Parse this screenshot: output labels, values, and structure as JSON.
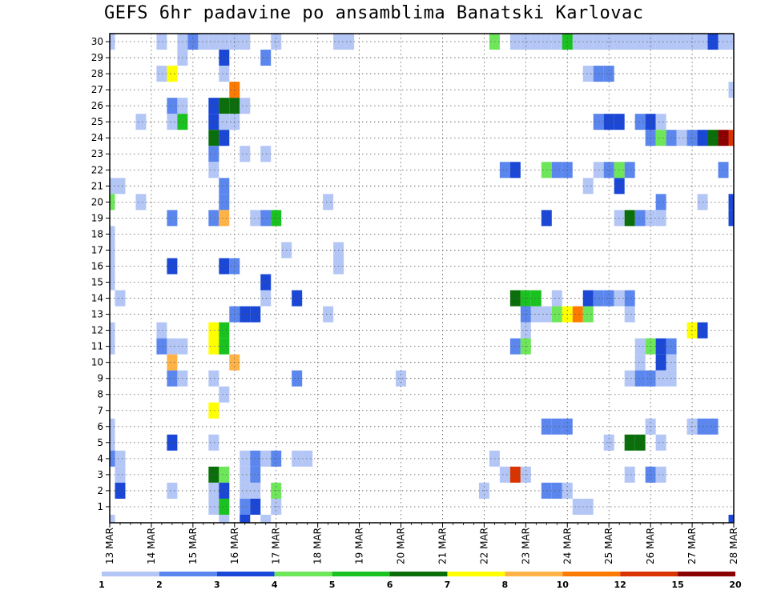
{
  "chart_data": {
    "type": "heatmap",
    "title": "GEFS 6hr padavine po ansamblima Banatski Karlovac",
    "x_axis": {
      "ticks": [
        "13 MAR",
        "14 MAR",
        "15 MAR",
        "16 MAR",
        "17 MAR",
        "18 MAR",
        "19 MAR",
        "20 MAR",
        "21 MAR",
        "22 MAR",
        "23 MAR",
        "24 MAR",
        "25 MAR",
        "26 MAR",
        "27 MAR",
        "28 MAR"
      ],
      "steps_per_day": 4,
      "range": [
        "13 MAR",
        "28 MAR"
      ]
    },
    "y_axis": {
      "ticks": [
        1,
        2,
        3,
        4,
        5,
        6,
        7,
        8,
        9,
        10,
        11,
        12,
        13,
        14,
        15,
        16,
        17,
        18,
        19,
        20,
        21,
        22,
        23,
        24,
        25,
        26,
        27,
        28,
        29,
        30
      ],
      "range": [
        0,
        30
      ]
    },
    "grid": true,
    "colorbar": {
      "levels": [
        "1",
        "2",
        "3",
        "4",
        "5",
        "6",
        "7",
        "8",
        "10",
        "12",
        "15",
        "20"
      ],
      "colors": [
        "#b3c6f5",
        "#5b86ee",
        "#1b47d6",
        "#6ee65a",
        "#19c21f",
        "#0a6e0a",
        "#ffff00",
        "#ffb347",
        "#ff7b00",
        "#d93400",
        "#8b0000"
      ]
    },
    "cells": [
      {
        "m": 30,
        "t": 0,
        "c": 0
      },
      {
        "m": 30,
        "t": 5,
        "c": 0
      },
      {
        "m": 30,
        "t": 7,
        "c": 0
      },
      {
        "m": 30,
        "t": 8,
        "c": 1
      },
      {
        "m": 30,
        "t": 9,
        "c": 0
      },
      {
        "m": 30,
        "t": 10,
        "c": 0
      },
      {
        "m": 30,
        "t": 11,
        "c": 0
      },
      {
        "m": 30,
        "t": 12,
        "c": 0
      },
      {
        "m": 30,
        "t": 13,
        "c": 0
      },
      {
        "m": 30,
        "t": 16,
        "c": 0
      },
      {
        "m": 30,
        "t": 22,
        "c": 0
      },
      {
        "m": 30,
        "t": 23,
        "c": 0
      },
      {
        "m": 30,
        "t": 40,
        "c": 0
      },
      {
        "m": 30,
        "t": 41,
        "c": 0
      },
      {
        "m": 30,
        "t": 42,
        "c": 0
      },
      {
        "m": 30,
        "t": 43,
        "c": 0
      },
      {
        "m": 30,
        "t": 44,
        "c": 0
      },
      {
        "m": 30,
        "t": 45,
        "c": 0
      },
      {
        "m": 30,
        "t": 46,
        "c": 0
      },
      {
        "m": 30,
        "t": 47,
        "c": 0
      },
      {
        "m": 30,
        "t": 48,
        "c": 0
      },
      {
        "m": 30,
        "t": 49,
        "c": 0
      },
      {
        "m": 30,
        "t": 50,
        "c": 0
      },
      {
        "m": 30,
        "t": 51,
        "c": 0
      },
      {
        "m": 30,
        "t": 52,
        "c": 0
      },
      {
        "m": 30,
        "t": 53,
        "c": 0
      },
      {
        "m": 30,
        "t": 54,
        "c": 0
      },
      {
        "m": 30,
        "t": 55,
        "c": 0
      },
      {
        "m": 30,
        "t": 56,
        "c": 0
      },
      {
        "m": 30,
        "t": 57,
        "c": 0
      },
      {
        "m": 30,
        "t": 58,
        "c": 0
      },
      {
        "m": 30,
        "t": 59,
        "c": 0
      },
      {
        "m": 30,
        "t": 37,
        "c": 3
      },
      {
        "m": 30,
        "t": 39,
        "c": 0
      },
      {
        "m": 30,
        "t": 44,
        "c": 4
      },
      {
        "m": 30,
        "t": 50,
        "c": 0
      },
      {
        "m": 30,
        "t": 57,
        "c": 0
      },
      {
        "m": 30,
        "t": 58,
        "c": 2
      },
      {
        "m": 30,
        "t": 59,
        "c": 0
      },
      {
        "m": 30,
        "t": 60,
        "c": 0
      },
      {
        "m": 29,
        "t": 7,
        "c": 0
      },
      {
        "m": 29,
        "t": 11,
        "c": 2
      },
      {
        "m": 29,
        "t": 15,
        "c": 1
      },
      {
        "m": 28,
        "t": 5,
        "c": 0
      },
      {
        "m": 28,
        "t": 6,
        "c": 6
      },
      {
        "m": 28,
        "t": 11,
        "c": 0
      },
      {
        "m": 28,
        "t": 46,
        "c": 0
      },
      {
        "m": 28,
        "t": 47,
        "c": 1
      },
      {
        "m": 28,
        "t": 48,
        "c": 1
      },
      {
        "m": 27,
        "t": 12,
        "c": 8
      },
      {
        "m": 27,
        "t": 60,
        "c": 0
      },
      {
        "m": 26,
        "t": 6,
        "c": 1
      },
      {
        "m": 26,
        "t": 7,
        "c": 0
      },
      {
        "m": 26,
        "t": 10,
        "c": 2
      },
      {
        "m": 26,
        "t": 11,
        "c": 5
      },
      {
        "m": 26,
        "t": 12,
        "c": 5
      },
      {
        "m": 26,
        "t": 13,
        "c": 0
      },
      {
        "m": 25,
        "t": 3,
        "c": 0
      },
      {
        "m": 25,
        "t": 6,
        "c": 0
      },
      {
        "m": 25,
        "t": 7,
        "c": 4
      },
      {
        "m": 25,
        "t": 10,
        "c": 2
      },
      {
        "m": 25,
        "t": 11,
        "c": 0
      },
      {
        "m": 25,
        "t": 12,
        "c": 0
      },
      {
        "m": 25,
        "t": 47,
        "c": 1
      },
      {
        "m": 25,
        "t": 48,
        "c": 2
      },
      {
        "m": 25,
        "t": 49,
        "c": 2
      },
      {
        "m": 25,
        "t": 51,
        "c": 1
      },
      {
        "m": 25,
        "t": 52,
        "c": 2
      },
      {
        "m": 25,
        "t": 53,
        "c": 0
      },
      {
        "m": 24,
        "t": 10,
        "c": 5
      },
      {
        "m": 24,
        "t": 11,
        "c": 2
      },
      {
        "m": 24,
        "t": 52,
        "c": 1
      },
      {
        "m": 24,
        "t": 53,
        "c": 3
      },
      {
        "m": 24,
        "t": 54,
        "c": 1
      },
      {
        "m": 24,
        "t": 55,
        "c": 0
      },
      {
        "m": 24,
        "t": 56,
        "c": 1
      },
      {
        "m": 24,
        "t": 57,
        "c": 2
      },
      {
        "m": 24,
        "t": 58,
        "c": 5
      },
      {
        "m": 24,
        "t": 59,
        "c": 10
      },
      {
        "m": 24,
        "t": 60,
        "c": 9
      },
      {
        "m": 23,
        "t": 10,
        "c": 1
      },
      {
        "m": 23,
        "t": 13,
        "c": 0
      },
      {
        "m": 23,
        "t": 15,
        "c": 0
      },
      {
        "m": 22,
        "t": 10,
        "c": 0
      },
      {
        "m": 22,
        "t": 38,
        "c": 1
      },
      {
        "m": 22,
        "t": 39,
        "c": 2
      },
      {
        "m": 22,
        "t": 42,
        "c": 3
      },
      {
        "m": 22,
        "t": 43,
        "c": 1
      },
      {
        "m": 22,
        "t": 44,
        "c": 1
      },
      {
        "m": 22,
        "t": 47,
        "c": 0
      },
      {
        "m": 22,
        "t": 48,
        "c": 1
      },
      {
        "m": 22,
        "t": 49,
        "c": 3
      },
      {
        "m": 22,
        "t": 50,
        "c": 1
      },
      {
        "m": 22,
        "t": 59,
        "c": 1
      },
      {
        "m": 21,
        "t": 0,
        "c": 0
      },
      {
        "m": 21,
        "t": 1,
        "c": 0
      },
      {
        "m": 21,
        "t": 11,
        "c": 1
      },
      {
        "m": 21,
        "t": 46,
        "c": 0
      },
      {
        "m": 21,
        "t": 49,
        "c": 2
      },
      {
        "m": 20,
        "t": 0,
        "c": 3
      },
      {
        "m": 20,
        "t": 3,
        "c": 0
      },
      {
        "m": 20,
        "t": 11,
        "c": 1
      },
      {
        "m": 20,
        "t": 21,
        "c": 0
      },
      {
        "m": 20,
        "t": 53,
        "c": 1
      },
      {
        "m": 20,
        "t": 57,
        "c": 0
      },
      {
        "m": 20,
        "t": 60,
        "c": 2
      },
      {
        "m": 19,
        "t": 6,
        "c": 1
      },
      {
        "m": 19,
        "t": 10,
        "c": 1
      },
      {
        "m": 19,
        "t": 11,
        "c": 7
      },
      {
        "m": 19,
        "t": 14,
        "c": 0
      },
      {
        "m": 19,
        "t": 15,
        "c": 1
      },
      {
        "m": 19,
        "t": 16,
        "c": 4
      },
      {
        "m": 19,
        "t": 42,
        "c": 2
      },
      {
        "m": 19,
        "t": 49,
        "c": 0
      },
      {
        "m": 19,
        "t": 50,
        "c": 5
      },
      {
        "m": 19,
        "t": 51,
        "c": 1
      },
      {
        "m": 19,
        "t": 52,
        "c": 0
      },
      {
        "m": 19,
        "t": 53,
        "c": 0
      },
      {
        "m": 19,
        "t": 60,
        "c": 2
      },
      {
        "m": 18,
        "t": 0,
        "c": 0
      },
      {
        "m": 17,
        "t": 0,
        "c": 0
      },
      {
        "m": 17,
        "t": 17,
        "c": 0
      },
      {
        "m": 17,
        "t": 22,
        "c": 0
      },
      {
        "m": 16,
        "t": 0,
        "c": 0
      },
      {
        "m": 16,
        "t": 6,
        "c": 2
      },
      {
        "m": 16,
        "t": 11,
        "c": 2
      },
      {
        "m": 16,
        "t": 12,
        "c": 1
      },
      {
        "m": 16,
        "t": 22,
        "c": 0
      },
      {
        "m": 15,
        "t": 0,
        "c": 0
      },
      {
        "m": 15,
        "t": 15,
        "c": 2
      },
      {
        "m": 14,
        "t": 1,
        "c": 0
      },
      {
        "m": 14,
        "t": 15,
        "c": 0
      },
      {
        "m": 14,
        "t": 18,
        "c": 2
      },
      {
        "m": 14,
        "t": 39,
        "c": 5
      },
      {
        "m": 14,
        "t": 40,
        "c": 4
      },
      {
        "m": 14,
        "t": 41,
        "c": 4
      },
      {
        "m": 14,
        "t": 43,
        "c": 0
      },
      {
        "m": 14,
        "t": 46,
        "c": 2
      },
      {
        "m": 14,
        "t": 47,
        "c": 1
      },
      {
        "m": 14,
        "t": 48,
        "c": 1
      },
      {
        "m": 14,
        "t": 49,
        "c": 0
      },
      {
        "m": 14,
        "t": 50,
        "c": 1
      },
      {
        "m": 13,
        "t": 12,
        "c": 1
      },
      {
        "m": 13,
        "t": 13,
        "c": 2
      },
      {
        "m": 13,
        "t": 14,
        "c": 2
      },
      {
        "m": 13,
        "t": 21,
        "c": 0
      },
      {
        "m": 13,
        "t": 40,
        "c": 1
      },
      {
        "m": 13,
        "t": 41,
        "c": 0
      },
      {
        "m": 13,
        "t": 42,
        "c": 0
      },
      {
        "m": 13,
        "t": 43,
        "c": 3
      },
      {
        "m": 13,
        "t": 44,
        "c": 6
      },
      {
        "m": 13,
        "t": 45,
        "c": 8
      },
      {
        "m": 13,
        "t": 46,
        "c": 3
      },
      {
        "m": 13,
        "t": 50,
        "c": 0
      },
      {
        "m": 12,
        "t": 0,
        "c": 0
      },
      {
        "m": 12,
        "t": 5,
        "c": 0
      },
      {
        "m": 12,
        "t": 10,
        "c": 6
      },
      {
        "m": 12,
        "t": 11,
        "c": 4
      },
      {
        "m": 12,
        "t": 40,
        "c": 0
      },
      {
        "m": 12,
        "t": 56,
        "c": 6
      },
      {
        "m": 12,
        "t": 57,
        "c": 2
      },
      {
        "m": 11,
        "t": 0,
        "c": 0
      },
      {
        "m": 11,
        "t": 5,
        "c": 1
      },
      {
        "m": 11,
        "t": 6,
        "c": 0
      },
      {
        "m": 11,
        "t": 7,
        "c": 0
      },
      {
        "m": 11,
        "t": 10,
        "c": 6
      },
      {
        "m": 11,
        "t": 11,
        "c": 4
      },
      {
        "m": 11,
        "t": 39,
        "c": 1
      },
      {
        "m": 11,
        "t": 40,
        "c": 3
      },
      {
        "m": 11,
        "t": 51,
        "c": 0
      },
      {
        "m": 11,
        "t": 52,
        "c": 3
      },
      {
        "m": 11,
        "t": 53,
        "c": 2
      },
      {
        "m": 11,
        "t": 54,
        "c": 1
      },
      {
        "m": 10,
        "t": 6,
        "c": 7
      },
      {
        "m": 10,
        "t": 12,
        "c": 7
      },
      {
        "m": 10,
        "t": 51,
        "c": 0
      },
      {
        "m": 10,
        "t": 53,
        "c": 2
      },
      {
        "m": 10,
        "t": 54,
        "c": 0
      },
      {
        "m": 9,
        "t": 6,
        "c": 1
      },
      {
        "m": 9,
        "t": 7,
        "c": 0
      },
      {
        "m": 9,
        "t": 10,
        "c": 0
      },
      {
        "m": 9,
        "t": 18,
        "c": 1
      },
      {
        "m": 9,
        "t": 28,
        "c": 0
      },
      {
        "m": 9,
        "t": 50,
        "c": 0
      },
      {
        "m": 9,
        "t": 51,
        "c": 1
      },
      {
        "m": 9,
        "t": 52,
        "c": 1
      },
      {
        "m": 9,
        "t": 53,
        "c": 0
      },
      {
        "m": 9,
        "t": 54,
        "c": 0
      },
      {
        "m": 8,
        "t": 11,
        "c": 0
      },
      {
        "m": 7,
        "t": 10,
        "c": 6
      },
      {
        "m": 6,
        "t": 0,
        "c": 0
      },
      {
        "m": 6,
        "t": 42,
        "c": 1
      },
      {
        "m": 6,
        "t": 43,
        "c": 1
      },
      {
        "m": 6,
        "t": 44,
        "c": 1
      },
      {
        "m": 6,
        "t": 52,
        "c": 0
      },
      {
        "m": 6,
        "t": 56,
        "c": 0
      },
      {
        "m": 6,
        "t": 57,
        "c": 1
      },
      {
        "m": 6,
        "t": 58,
        "c": 1
      },
      {
        "m": 5,
        "t": 0,
        "c": 0
      },
      {
        "m": 5,
        "t": 6,
        "c": 2
      },
      {
        "m": 5,
        "t": 10,
        "c": 0
      },
      {
        "m": 5,
        "t": 48,
        "c": 0
      },
      {
        "m": 5,
        "t": 50,
        "c": 5
      },
      {
        "m": 5,
        "t": 51,
        "c": 5
      },
      {
        "m": 5,
        "t": 53,
        "c": 0
      },
      {
        "m": 4,
        "t": 0,
        "c": 1
      },
      {
        "m": 4,
        "t": 1,
        "c": 0
      },
      {
        "m": 4,
        "t": 13,
        "c": 0
      },
      {
        "m": 4,
        "t": 14,
        "c": 1
      },
      {
        "m": 4,
        "t": 15,
        "c": 0
      },
      {
        "m": 4,
        "t": 16,
        "c": 1
      },
      {
        "m": 4,
        "t": 18,
        "c": 0
      },
      {
        "m": 4,
        "t": 19,
        "c": 0
      },
      {
        "m": 4,
        "t": 37,
        "c": 0
      },
      {
        "m": 3,
        "t": 1,
        "c": 0
      },
      {
        "m": 3,
        "t": 10,
        "c": 5
      },
      {
        "m": 3,
        "t": 11,
        "c": 3
      },
      {
        "m": 3,
        "t": 13,
        "c": 0
      },
      {
        "m": 3,
        "t": 14,
        "c": 1
      },
      {
        "m": 3,
        "t": 38,
        "c": 0
      },
      {
        "m": 3,
        "t": 39,
        "c": 9
      },
      {
        "m": 3,
        "t": 40,
        "c": 0
      },
      {
        "m": 3,
        "t": 50,
        "c": 0
      },
      {
        "m": 3,
        "t": 52,
        "c": 1
      },
      {
        "m": 3,
        "t": 53,
        "c": 0
      },
      {
        "m": 2,
        "t": 1,
        "c": 2
      },
      {
        "m": 2,
        "t": 6,
        "c": 0
      },
      {
        "m": 2,
        "t": 10,
        "c": 0
      },
      {
        "m": 2,
        "t": 11,
        "c": 2
      },
      {
        "m": 2,
        "t": 13,
        "c": 0
      },
      {
        "m": 2,
        "t": 14,
        "c": 0
      },
      {
        "m": 2,
        "t": 16,
        "c": 3
      },
      {
        "m": 2,
        "t": 36,
        "c": 0
      },
      {
        "m": 2,
        "t": 42,
        "c": 1
      },
      {
        "m": 2,
        "t": 43,
        "c": 1
      },
      {
        "m": 2,
        "t": 44,
        "c": 0
      },
      {
        "m": 1,
        "t": 10,
        "c": 0
      },
      {
        "m": 1,
        "t": 11,
        "c": 4
      },
      {
        "m": 1,
        "t": 13,
        "c": 1
      },
      {
        "m": 1,
        "t": 14,
        "c": 2
      },
      {
        "m": 1,
        "t": 16,
        "c": 0
      },
      {
        "m": 1,
        "t": 45,
        "c": 0
      },
      {
        "m": 1,
        "t": 46,
        "c": 0
      },
      {
        "m": 0,
        "t": 0,
        "c": 0
      },
      {
        "m": 0,
        "t": 11,
        "c": 0
      },
      {
        "m": 0,
        "t": 13,
        "c": 2
      },
      {
        "m": 0,
        "t": 15,
        "c": 0
      },
      {
        "m": 0,
        "t": 60,
        "c": 2
      }
    ]
  }
}
